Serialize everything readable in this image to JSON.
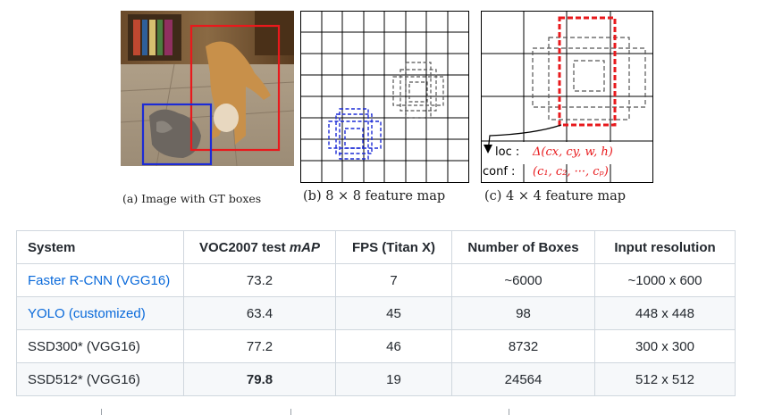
{
  "figure": {
    "caption_a": "(a) Image with GT boxes",
    "caption_b": "(b) 8 × 8 feature map",
    "caption_c": "(c) 4 × 4 feature map",
    "loc_label": "loc :",
    "loc_formula": "Δ(cx, cy, w, h)",
    "conf_label": "conf :",
    "conf_formula": "(c₁, c₂, ···, cₚ)",
    "colors": {
      "dog_box": "#e8191c",
      "cat_box": "#1c2bd6",
      "grid": "#000000",
      "default_box": "#555555"
    }
  },
  "table": {
    "headers": [
      "System",
      "VOC2007 test mAP",
      "FPS (Titan X)",
      "Number of Boxes",
      "Input resolution"
    ],
    "header_map_prefix": "VOC2007 test ",
    "header_map_em": "mAP",
    "rows": [
      {
        "system": "Faster R-CNN (VGG16)",
        "link": true,
        "map": "73.2",
        "bold": false,
        "fps": "7",
        "boxes": "~6000",
        "res": "~1000 x 600"
      },
      {
        "system": "YOLO (customized)",
        "link": true,
        "map": "63.4",
        "bold": false,
        "fps": "45",
        "boxes": "98",
        "res": "448 x 448"
      },
      {
        "system": "SSD300* (VGG16)",
        "link": false,
        "map": "77.2",
        "bold": false,
        "fps": "46",
        "boxes": "8732",
        "res": "300 x 300"
      },
      {
        "system": "SSD512* (VGG16)",
        "link": false,
        "map": "79.8",
        "bold": true,
        "fps": "19",
        "boxes": "24564",
        "res": "512 x 512"
      }
    ]
  }
}
